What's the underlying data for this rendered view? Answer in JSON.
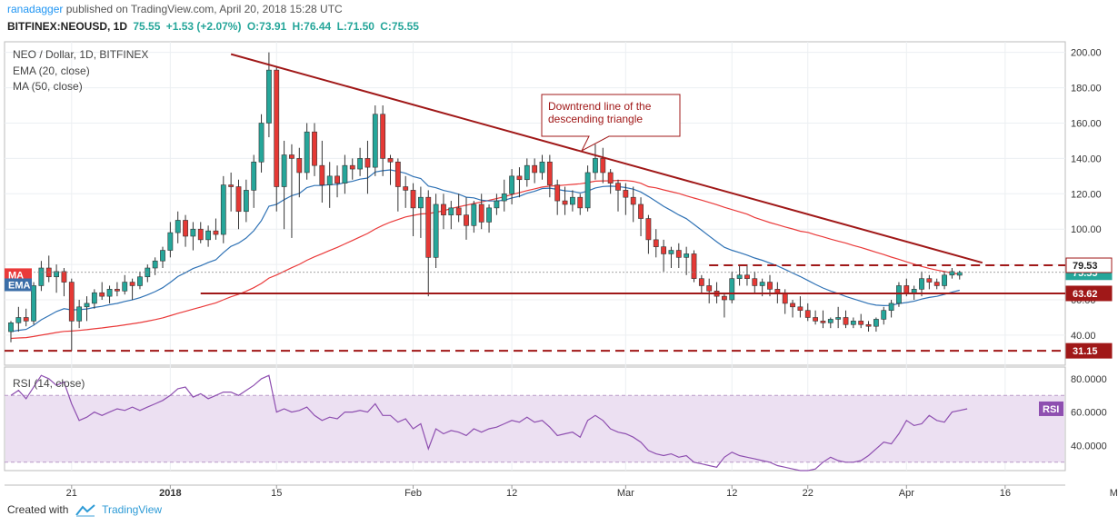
{
  "header": {
    "user": "ranadagger",
    "published_text": "published on TradingView.com, April 20, 2018 15:28 UTC",
    "symbol": "BITFINEX:NEOUSD, 1D",
    "last": "75.55",
    "change": "+1.53 (+2.07%)",
    "open": "O:73.91",
    "high": "H:76.44",
    "low": "L:71.50",
    "close": "C:75.55"
  },
  "legend": {
    "title": "NEO / Dollar, 1D, BITFINEX",
    "ema": "EMA (20, close)",
    "ma": "MA (50, close)",
    "rsi": "RSI (14, close)"
  },
  "footer": {
    "created_with": "Created with",
    "brand": "TradingView"
  },
  "colors": {
    "up": "#26a69a",
    "down": "#e53935",
    "ema": "#2f72b5",
    "ma": "#ea3a3a",
    "trend": "#a01818",
    "rsi": "#8e4fb0",
    "rsi_band": "#ece0f2"
  },
  "chart_data": [
    {
      "type": "candlestick",
      "title": "NEO / Dollar, 1D, BITFINEX",
      "x_ticks": [
        "21",
        "2018",
        "15",
        "Feb",
        "12",
        "Mar",
        "12",
        "22",
        "Apr",
        "16",
        "May"
      ],
      "y_ticks": [
        40,
        60,
        80,
        100,
        120,
        140,
        160,
        180,
        200
      ],
      "ylim": [
        23,
        206
      ],
      "price_labels": [
        {
          "name": "MA",
          "value": 74.2
        },
        {
          "name": "EMA",
          "value": 68.5
        },
        {
          "name": "current",
          "value": 75.55,
          "label": "75.55"
        },
        {
          "name": "resistance",
          "value": 79.53,
          "label": "79.53"
        },
        {
          "name": "support",
          "value": 63.62,
          "label": "63.62"
        },
        {
          "name": "low",
          "value": 31.15,
          "label": "31.15"
        }
      ],
      "candles": [
        [
          42,
          48,
          36,
          47
        ],
        [
          47,
          56,
          42,
          50
        ],
        [
          50,
          55,
          45,
          48
        ],
        [
          48,
          70,
          46,
          68
        ],
        [
          68,
          82,
          65,
          78
        ],
        [
          78,
          85,
          70,
          73
        ],
        [
          73,
          80,
          64,
          76
        ],
        [
          76,
          78,
          62,
          70
        ],
        [
          70,
          72,
          31.15,
          48
        ],
        [
          48,
          60,
          44,
          56
        ],
        [
          56,
          62,
          48,
          58
        ],
        [
          58,
          66,
          55,
          64
        ],
        [
          64,
          70,
          60,
          62
        ],
        [
          62,
          68,
          58,
          66
        ],
        [
          66,
          70,
          62,
          65
        ],
        [
          65,
          74,
          63,
          70
        ],
        [
          70,
          72,
          60,
          68
        ],
        [
          68,
          76,
          66,
          73
        ],
        [
          73,
          80,
          70,
          78
        ],
        [
          78,
          84,
          74,
          82
        ],
        [
          82,
          90,
          78,
          88
        ],
        [
          88,
          104,
          84,
          98
        ],
        [
          98,
          110,
          92,
          105
        ],
        [
          105,
          108,
          90,
          96
        ],
        [
          96,
          104,
          88,
          100
        ],
        [
          100,
          104,
          92,
          94
        ],
        [
          94,
          102,
          90,
          99
        ],
        [
          99,
          106,
          94,
          97
        ],
        [
          97,
          130,
          92,
          125
        ],
        [
          125,
          132,
          110,
          124
        ],
        [
          124,
          128,
          100,
          110
        ],
        [
          110,
          128,
          104,
          122
        ],
        [
          122,
          142,
          112,
          138
        ],
        [
          138,
          165,
          132,
          160
        ],
        [
          160,
          200,
          152,
          190
        ],
        [
          190,
          192,
          110,
          124
        ],
        [
          124,
          150,
          100,
          142
        ],
        [
          142,
          148,
          95,
          140
        ],
        [
          140,
          146,
          118,
          132
        ],
        [
          132,
          160,
          128,
          155
        ],
        [
          155,
          160,
          130,
          136
        ],
        [
          136,
          150,
          115,
          125
        ],
        [
          125,
          138,
          112,
          130
        ],
        [
          130,
          136,
          118,
          126
        ],
        [
          126,
          142,
          120,
          136
        ],
        [
          136,
          140,
          128,
          134
        ],
        [
          134,
          146,
          130,
          140
        ],
        [
          140,
          150,
          120,
          135
        ],
        [
          135,
          170,
          130,
          165
        ],
        [
          165,
          170,
          130,
          140
        ],
        [
          140,
          142,
          125,
          138
        ],
        [
          138,
          140,
          110,
          124
        ],
        [
          124,
          130,
          112,
          122
        ],
        [
          122,
          126,
          96,
          112
        ],
        [
          112,
          124,
          95,
          118
        ],
        [
          118,
          122,
          62,
          84
        ],
        [
          84,
          120,
          78,
          114
        ],
        [
          114,
          120,
          100,
          108
        ],
        [
          108,
          116,
          100,
          112
        ],
        [
          112,
          120,
          104,
          108
        ],
        [
          108,
          118,
          94,
          102
        ],
        [
          102,
          116,
          98,
          114
        ],
        [
          114,
          120,
          100,
          104
        ],
        [
          104,
          114,
          98,
          112
        ],
        [
          112,
          120,
          108,
          116
        ],
        [
          116,
          128,
          110,
          120
        ],
        [
          120,
          134,
          114,
          130
        ],
        [
          130,
          135,
          118,
          128
        ],
        [
          128,
          140,
          124,
          136
        ],
        [
          136,
          140,
          126,
          132
        ],
        [
          132,
          142,
          128,
          138
        ],
        [
          138,
          142,
          118,
          125
        ],
        [
          125,
          128,
          108,
          116
        ],
        [
          116,
          124,
          108,
          114
        ],
        [
          114,
          122,
          110,
          118
        ],
        [
          118,
          120,
          108,
          112
        ],
        [
          112,
          136,
          110,
          132
        ],
        [
          132,
          148,
          128,
          140
        ],
        [
          140,
          146,
          126,
          132
        ],
        [
          132,
          134,
          120,
          126
        ],
        [
          126,
          128,
          110,
          122
        ],
        [
          122,
          126,
          108,
          118
        ],
        [
          118,
          124,
          104,
          114
        ],
        [
          114,
          118,
          96,
          106
        ],
        [
          106,
          108,
          86,
          94
        ],
        [
          94,
          100,
          84,
          90
        ],
        [
          90,
          94,
          76,
          86
        ],
        [
          86,
          90,
          78,
          88
        ],
        [
          88,
          92,
          78,
          84
        ],
        [
          84,
          90,
          74,
          86
        ],
        [
          86,
          88,
          70,
          72
        ],
        [
          72,
          74,
          64,
          68
        ],
        [
          68,
          72,
          58,
          65
        ],
        [
          65,
          70,
          58,
          62
        ],
        [
          62,
          64,
          50,
          60
        ],
        [
          60,
          76,
          58,
          72
        ],
        [
          72,
          80,
          68,
          74
        ],
        [
          74,
          80,
          68,
          72
        ],
        [
          72,
          76,
          64,
          68
        ],
        [
          68,
          72,
          62,
          70
        ],
        [
          70,
          74,
          62,
          66
        ],
        [
          66,
          70,
          58,
          64
        ],
        [
          64,
          66,
          52,
          58
        ],
        [
          58,
          60,
          50,
          56
        ],
        [
          56,
          62,
          50,
          54
        ],
        [
          54,
          58,
          48,
          50
        ],
        [
          50,
          54,
          46,
          48
        ],
        [
          48,
          54,
          44,
          47
        ],
        [
          47,
          50,
          44,
          49
        ],
        [
          49,
          56,
          44,
          50
        ],
        [
          50,
          54,
          44,
          46
        ],
        [
          46,
          50,
          44,
          48
        ],
        [
          48,
          52,
          44,
          46
        ],
        [
          46,
          48,
          42,
          45
        ],
        [
          45,
          50,
          42,
          49
        ],
        [
          49,
          56,
          46,
          54
        ],
        [
          54,
          60,
          50,
          58
        ],
        [
          58,
          70,
          56,
          68
        ],
        [
          68,
          72,
          62,
          64
        ],
        [
          64,
          68,
          60,
          66
        ],
        [
          66,
          76,
          62,
          72
        ],
        [
          72,
          74,
          66,
          70
        ],
        [
          70,
          72,
          66,
          68
        ],
        [
          68,
          76,
          66,
          74
        ],
        [
          74,
          78,
          72,
          76
        ],
        [
          73.91,
          76.44,
          71.5,
          75.55
        ]
      ],
      "series": [
        {
          "name": "EMA (20, close)",
          "values": []
        },
        {
          "name": "MA (50, close)",
          "values": []
        }
      ],
      "annotations": [
        {
          "text": [
            "Downtrend line of the",
            "descending triangle"
          ],
          "kind": "callout"
        }
      ]
    },
    {
      "type": "line",
      "title": "RSI (14, close)",
      "y_ticks": [
        40,
        60,
        80
      ],
      "y_tick_labels": [
        "40.0000",
        "60.0000",
        "80.0000"
      ],
      "ylim": [
        25,
        87
      ],
      "band": [
        30,
        70
      ],
      "badge": "RSI",
      "values": [
        70,
        73,
        68,
        75,
        82,
        80,
        76,
        78,
        65,
        55,
        57,
        60,
        58,
        60,
        62,
        61,
        63,
        61,
        63,
        65,
        67,
        70,
        74,
        75,
        69,
        71,
        68,
        70,
        72,
        72,
        70,
        73,
        76,
        80,
        82,
        60,
        62,
        60,
        61,
        63,
        58,
        55,
        57,
        56,
        60,
        60,
        61,
        60,
        65,
        58,
        58,
        54,
        56,
        50,
        53,
        38,
        50,
        47,
        49,
        48,
        46,
        50,
        48,
        50,
        51,
        53,
        55,
        54,
        57,
        54,
        55,
        51,
        46,
        47,
        48,
        45,
        55,
        58,
        55,
        50,
        48,
        47,
        45,
        42,
        37,
        35,
        34,
        35,
        33,
        34,
        30,
        29,
        28,
        27,
        33,
        36,
        34,
        33,
        32,
        31,
        30,
        28,
        27,
        26,
        25,
        25,
        26,
        30,
        33,
        31,
        30,
        30,
        31,
        34,
        38,
        42,
        41,
        47,
        55,
        52,
        53,
        58,
        55,
        54,
        60,
        61,
        62
      ]
    }
  ]
}
